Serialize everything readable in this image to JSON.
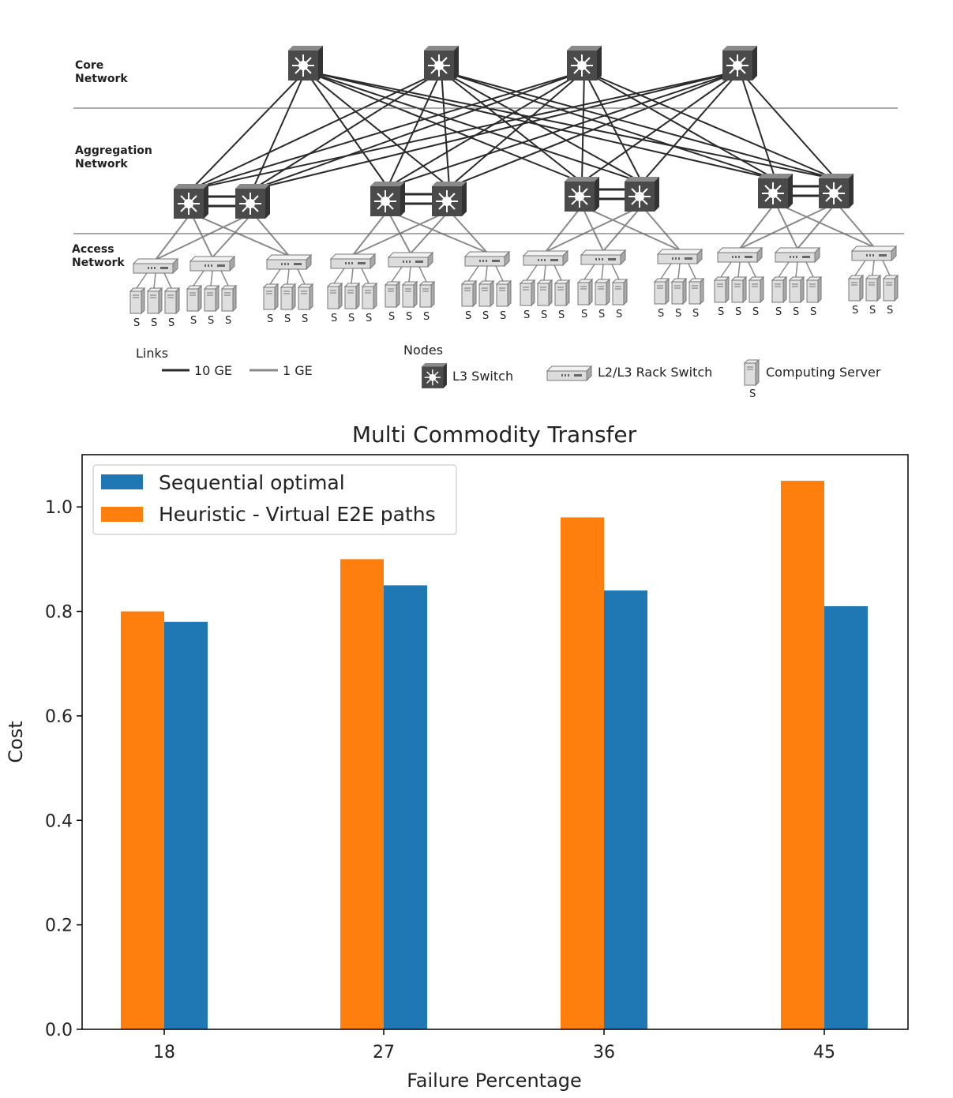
{
  "diagram": {
    "tiers": [
      {
        "line1": "Core",
        "line2": "Network"
      },
      {
        "line1": "Aggregation",
        "line2": "Network"
      },
      {
        "line1": "Access",
        "line2": "Network"
      }
    ],
    "server_label": "S",
    "legend": {
      "links_title": "Links",
      "link_10ge": "10 GE",
      "link_1ge": "1 GE",
      "nodes_title": "Nodes",
      "l3_switch": "L3 Switch",
      "rack_switch": "L2/L3 Rack Switch",
      "computing_server": "Computing Server",
      "server_symbol": "S"
    },
    "colors": {
      "link_10ge": "#2b2b2b",
      "link_1ge": "#8a8a8a",
      "switch": "#4a4a4a"
    }
  },
  "chart_data": {
    "type": "bar",
    "title": "Multi Commodity Transfer",
    "xlabel": "Failure Percentage",
    "ylabel": "Cost",
    "categories": [
      "18",
      "27",
      "36",
      "45"
    ],
    "series": [
      {
        "name": "Heuristic - Virtual E2E paths",
        "color": "#ff7f0e",
        "values": [
          0.8,
          0.9,
          0.98,
          1.05
        ]
      },
      {
        "name": "Sequential optimal",
        "color": "#1f77b4",
        "values": [
          0.78,
          0.85,
          0.84,
          0.81
        ]
      }
    ],
    "legend_order": [
      1,
      0
    ],
    "ylim": [
      0,
      1.1
    ],
    "yticks": [
      "0.0",
      "0.2",
      "0.4",
      "0.6",
      "0.8",
      "1.0"
    ],
    "grid": false,
    "legend_position": "top-left"
  }
}
